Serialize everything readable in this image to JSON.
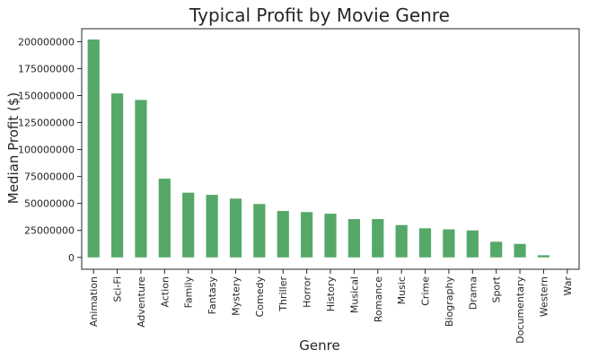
{
  "chart_data": {
    "type": "bar",
    "title": "Typical Profit by Movie Genre",
    "xlabel": "Genre",
    "ylabel": "Median Profit ($)",
    "categories": [
      "Animation",
      "Sci-Fi",
      "Adventure",
      "Action",
      "Family",
      "Fantasy",
      "Mystery",
      "Comedy",
      "Thriller",
      "Horror",
      "History",
      "Musical",
      "Romance",
      "Music",
      "Crime",
      "Biography",
      "Drama",
      "Sport",
      "Documentary",
      "Western",
      "War"
    ],
    "values": [
      202000000,
      152000000,
      146000000,
      73000000,
      60000000,
      58000000,
      54500000,
      49500000,
      43000000,
      42000000,
      40500000,
      35500000,
      35500000,
      30000000,
      27000000,
      26000000,
      25000000,
      14500000,
      12500000,
      2000000,
      0
    ],
    "yticks": [
      0,
      25000000,
      50000000,
      75000000,
      100000000,
      125000000,
      150000000,
      175000000,
      200000000
    ],
    "ytick_labels": [
      "0",
      "25000000",
      "50000000",
      "75000000",
      "100000000",
      "125000000",
      "150000000",
      "175000000",
      "200000000"
    ],
    "ylim": [
      -11000000,
      212000000
    ],
    "grid": false,
    "bar_color": "#55a868"
  }
}
